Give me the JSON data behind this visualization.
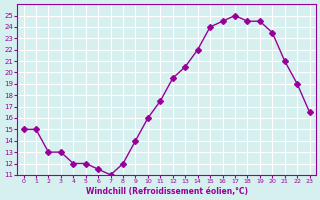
{
  "x": [
    0,
    1,
    2,
    3,
    4,
    5,
    6,
    7,
    8,
    9,
    10,
    11,
    12,
    13,
    14,
    15,
    16,
    17,
    18,
    19,
    20,
    21,
    22,
    23
  ],
  "y": [
    15,
    15,
    13,
    13,
    12,
    12,
    11.5,
    11,
    12,
    14,
    16,
    17.5,
    19.5,
    20.5,
    22,
    24,
    24.5,
    25,
    24.5,
    24.5,
    23.5,
    21,
    19,
    16.5
  ],
  "line_color": "#990099",
  "marker": "D",
  "marker_size": 3,
  "bg_color": "#d6f0f0",
  "grid_color": "#ffffff",
  "xlabel": "Windchill (Refroidissement éolien,°C)",
  "xlabel_color": "#990099",
  "tick_color": "#990099",
  "ylim": [
    11,
    26
  ],
  "xlim": [
    -0.5,
    23.5
  ],
  "yticks": [
    11,
    12,
    13,
    14,
    15,
    16,
    17,
    18,
    19,
    20,
    21,
    22,
    23,
    24,
    25
  ],
  "xticks": [
    0,
    1,
    2,
    3,
    4,
    5,
    6,
    7,
    8,
    9,
    10,
    11,
    12,
    13,
    14,
    15,
    16,
    17,
    18,
    19,
    20,
    21,
    22,
    23
  ]
}
